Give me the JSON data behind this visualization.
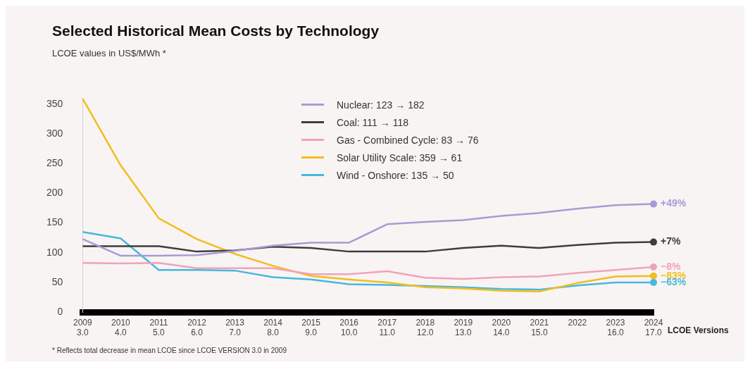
{
  "chart_data": {
    "type": "line",
    "title": "Selected Historical Mean Costs by Technology",
    "subtitle": "LCOE values in US$/MWh *",
    "xlabel": "LCOE Versions",
    "categories": [
      "2009 3.0",
      "2010 4.0",
      "2011 5.0",
      "2012 6.0",
      "2013 7.0",
      "2014 8.0",
      "2015 9.0",
      "2016 10.0",
      "2017 11.0",
      "2018 12.0",
      "2019 13.0",
      "2020 14.0",
      "2021 15.0",
      "2022",
      "2023 16.0",
      "2024 17.0"
    ],
    "series": [
      {
        "name": "Nuclear: 123 → 182",
        "color": "#a99ad6",
        "values": [
          123,
          95,
          95,
          96,
          103,
          112,
          117,
          117,
          148,
          152,
          155,
          162,
          167,
          174,
          180,
          182
        ]
      },
      {
        "name": "Coal: 111 → 118",
        "color": "#3d3d3d",
        "values": [
          111,
          111,
          111,
          102,
          104,
          110,
          108,
          102,
          102,
          102,
          108,
          112,
          108,
          113,
          117,
          118
        ]
      },
      {
        "name": "Gas - Combined Cycle: 83 → 76",
        "color": "#f0a3b8",
        "values": [
          83,
          82,
          83,
          74,
          74,
          74,
          64,
          64,
          69,
          58,
          56,
          59,
          60,
          66,
          71,
          76
        ]
      },
      {
        "name": "Solar Utility Scale: 359 → 61",
        "color": "#f2bd1d",
        "values": [
          359,
          247,
          158,
          123,
          98,
          78,
          61,
          55,
          50,
          42,
          40,
          36,
          35,
          49,
          60,
          61
        ]
      },
      {
        "name": "Wind - Onshore: 135 → 50",
        "color": "#45b8e0",
        "values": [
          135,
          124,
          71,
          71,
          70,
          59,
          55,
          47,
          46,
          44,
          42,
          39,
          38,
          45,
          50,
          50
        ]
      }
    ],
    "ylim": [
      0,
      360
    ],
    "yticks": [
      0,
      50,
      100,
      150,
      200,
      250,
      300,
      350
    ],
    "grid": false,
    "legend": "top",
    "annotations": [
      {
        "text": "+49%",
        "x": "2024 17.0",
        "y": 182
      },
      {
        "text": "+7%",
        "x": "2024 17.0",
        "y": 118
      },
      {
        "text": "−8%",
        "x": "2024 17.0",
        "y": 76
      },
      {
        "text": "−83%",
        "x": "2024 17.0",
        "y": 61
      },
      {
        "text": "−63%",
        "x": "2024 17.0",
        "y": 50
      },
      "* Reflects total decrease in mean LCOE since LCOE VERSION 3.0 in 2009"
    ]
  }
}
